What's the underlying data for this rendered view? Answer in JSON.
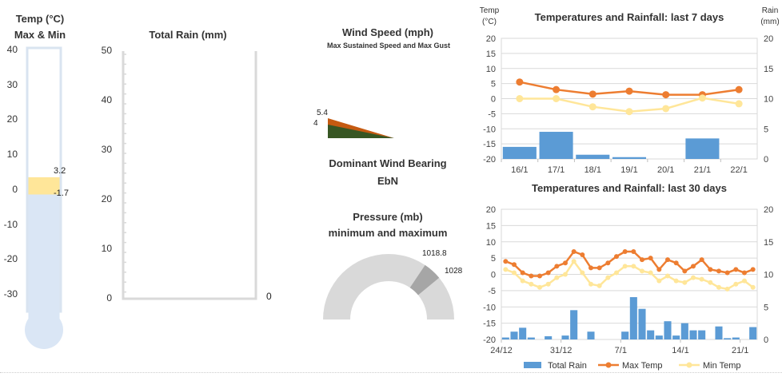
{
  "thermometer": {
    "title_line1": "Temp (°C)",
    "title_line2": "Max & Min",
    "ticks": [
      "40",
      "30",
      "20",
      "10",
      "0",
      "-10",
      "-20",
      "-30"
    ],
    "max_label": "3.2",
    "min_label": "-1.7",
    "max": 3.2,
    "min": -1.7
  },
  "rain_gauge": {
    "title": "Total Rain (mm)",
    "ticks": [
      "50",
      "40",
      "30",
      "20",
      "10",
      "0"
    ],
    "value_label": "0",
    "value": 0
  },
  "wind": {
    "title": "Wind Speed (mph)",
    "subtitle": "Max Sustained Speed and Max Gust",
    "gust_label": "5.4",
    "speed_label": "4",
    "gust": 5.4,
    "speed": 4,
    "bearing_title": "Dominant Wind Bearing",
    "bearing_value": "EbN",
    "colors": {
      "gust": "#c55a11",
      "speed": "#375623"
    }
  },
  "pressure": {
    "title_line1": "Pressure (mb)",
    "title_line2": "minimum and maximum",
    "min_label": "1018.8",
    "max_label": "1028",
    "min": 1018.8,
    "max": 1028
  },
  "chart_data": [
    {
      "type": "bar",
      "title": "Temperatures and Rainfall: last 7 days",
      "ylabel_left_line1": "Temp",
      "ylabel_left_line2": "(°C)",
      "ylabel_right_line1": "Rain",
      "ylabel_right_line2": "(mm)",
      "categories": [
        "16/1",
        "17/1",
        "18/1",
        "19/1",
        "20/1",
        "21/1",
        "22/1"
      ],
      "ylim": [
        -20,
        20
      ],
      "y2lim": [
        0,
        20
      ],
      "yticks": [
        "20",
        "15",
        "10",
        "5",
        "0",
        "-5",
        "-10",
        "-15",
        "-20"
      ],
      "y2ticks": [
        "20",
        "15",
        "10",
        "5",
        "0"
      ],
      "series": [
        {
          "kind": "bar",
          "axis": "right",
          "color": "#5b9bd5",
          "values": [
            2,
            4.5,
            0.7,
            0.3,
            0,
            3.4,
            0
          ]
        },
        {
          "kind": "line",
          "axis": "left",
          "color": "#ed7d31",
          "values": [
            5.5,
            3,
            1.5,
            2.5,
            1.3,
            1.3,
            3
          ]
        },
        {
          "kind": "line",
          "axis": "left",
          "color": "#ffe699",
          "values": [
            0,
            0,
            -2.7,
            -4.3,
            -3.3,
            0.2,
            -1.7
          ]
        }
      ]
    },
    {
      "type": "bar",
      "title": "Temperatures and Rainfall: last 30 days",
      "x_tick_labels": [
        "24/12",
        "31/12",
        "7/1",
        "14/1",
        "21/1"
      ],
      "x_tick_index": [
        0,
        7,
        14,
        21,
        28
      ],
      "ylim": [
        -20,
        20
      ],
      "y2lim": [
        0,
        20
      ],
      "yticks": [
        "20",
        "15",
        "10",
        "5",
        "0",
        "-5",
        "-10",
        "-15",
        "-20"
      ],
      "y2ticks": [
        "20",
        "15",
        "10",
        "5",
        "0"
      ],
      "series": [
        {
          "kind": "bar",
          "axis": "right",
          "name": "Total Rain",
          "color": "#5b9bd5",
          "values": [
            0.3,
            1.2,
            1.8,
            0.3,
            0,
            0.5,
            0,
            0.6,
            4.5,
            0,
            1.2,
            0,
            0,
            0,
            1.2,
            6.5,
            4.7,
            1.4,
            0.6,
            2.8,
            0.6,
            2.5,
            1.4,
            1.4,
            0,
            2,
            0.2,
            0.3,
            0,
            1.9
          ]
        },
        {
          "kind": "line",
          "axis": "left",
          "name": "Max Temp",
          "color": "#ed7d31",
          "values": [
            4,
            3,
            0.5,
            -0.5,
            -0.5,
            0.5,
            2.5,
            3.5,
            7,
            6,
            2,
            2,
            3.5,
            5.5,
            7,
            7,
            4.5,
            5,
            1.5,
            4.5,
            3.5,
            1,
            2.5,
            4.5,
            1.5,
            1,
            0.5,
            1.5,
            0.5,
            1.5
          ]
        },
        {
          "kind": "line",
          "axis": "left",
          "name": "Min Temp",
          "color": "#ffe699",
          "values": [
            1.5,
            0.5,
            -2,
            -3,
            -4,
            -3,
            -1,
            0,
            4,
            0.5,
            -3,
            -3.5,
            -1,
            0.5,
            2.5,
            2.5,
            1,
            0.5,
            -2,
            -0.5,
            -2,
            -2.5,
            -1,
            -1.5,
            -2.5,
            -4,
            -4.5,
            -3,
            -2,
            -4
          ]
        }
      ],
      "legend": [
        "Total Rain",
        "Max Temp",
        "Min Temp"
      ]
    }
  ]
}
